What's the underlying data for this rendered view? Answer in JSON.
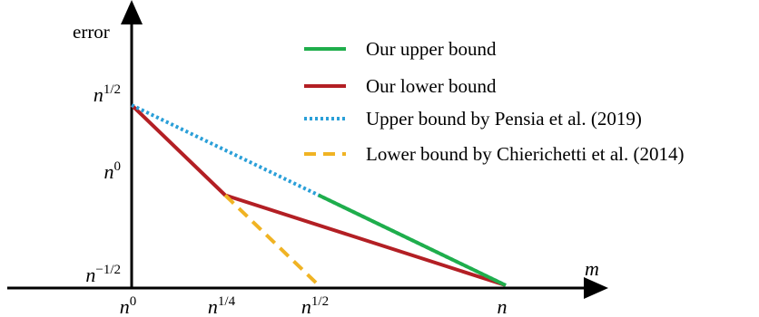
{
  "chart_data": {
    "type": "line",
    "ylabel": "error",
    "xlabel": "m",
    "x_ticks": [
      {
        "base": "n",
        "exp": "0"
      },
      {
        "base": "n",
        "exp": "1/4"
      },
      {
        "base": "n",
        "exp": "1/2"
      },
      {
        "base": "n",
        "exp": ""
      }
    ],
    "y_ticks": [
      {
        "base": "n",
        "exp": "1/2"
      },
      {
        "base": "n",
        "exp": "0"
      },
      {
        "base": "n",
        "exp": "−1/2"
      }
    ],
    "x_scale": "log (exponent of n)",
    "y_scale": "log (exponent of n)",
    "xlim": [
      0,
      1
    ],
    "ylim": [
      -0.5,
      0.5
    ],
    "grid": false,
    "legend_position": "top-right",
    "series": [
      {
        "name": "Our upper bound",
        "color": "#1fae4b",
        "style": "solid",
        "x": [
          0.5,
          1
        ],
        "y": [
          0,
          -0.5
        ]
      },
      {
        "name": "Our lower bound",
        "color": "#b31f24",
        "style": "solid",
        "x": [
          0,
          0.25,
          1
        ],
        "y": [
          0.5,
          0,
          -0.5
        ]
      },
      {
        "name": "Upper bound by Pensia et al. (2019)",
        "color": "#2a9fd8",
        "style": "dotted",
        "x": [
          0,
          1
        ],
        "y": [
          0.5,
          -0.5
        ]
      },
      {
        "name": "Lower bound by Chierichetti et al. (2014)",
        "color": "#f0b323",
        "style": "dashed",
        "x": [
          0.25,
          0.5
        ],
        "y": [
          0,
          -0.5
        ]
      }
    ]
  }
}
